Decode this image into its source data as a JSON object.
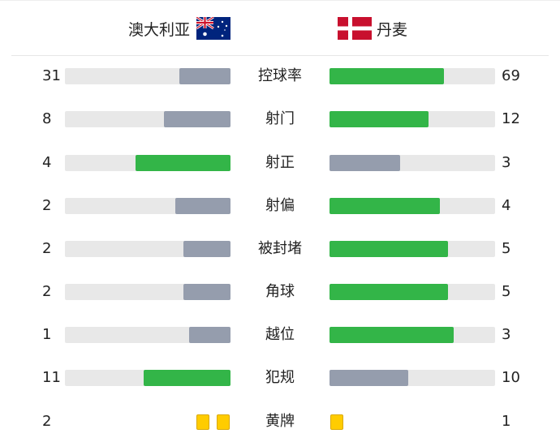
{
  "home_team": {
    "name": "澳大利亚",
    "flag": "australia-flag"
  },
  "away_team": {
    "name": "丹麦",
    "flag": "denmark-flag"
  },
  "colors": {
    "leader": "#33b548",
    "trailer": "#959dad",
    "track": "#e8e8e8",
    "card": "#ffcc00"
  },
  "stats": [
    {
      "label": "控球率",
      "home": "31",
      "away": "69"
    },
    {
      "label": "射门",
      "home": "8",
      "away": "12"
    },
    {
      "label": "射正",
      "home": "4",
      "away": "3"
    },
    {
      "label": "射偏",
      "home": "2",
      "away": "4"
    },
    {
      "label": "被封堵",
      "home": "2",
      "away": "5"
    },
    {
      "label": "角球",
      "home": "2",
      "away": "5"
    },
    {
      "label": "越位",
      "home": "1",
      "away": "3"
    },
    {
      "label": "犯规",
      "home": "11",
      "away": "10"
    }
  ],
  "yellow_cards": {
    "label": "黄牌",
    "home": "2",
    "away": "1"
  }
}
